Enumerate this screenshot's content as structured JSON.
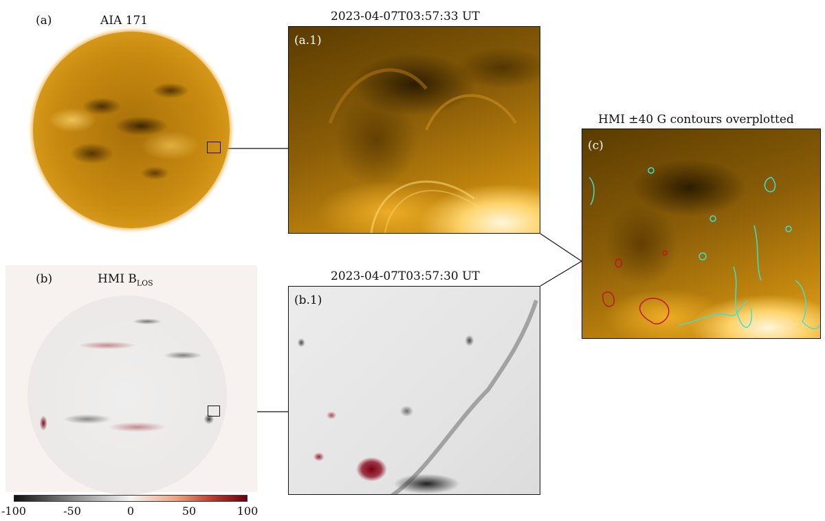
{
  "panel_a": {
    "tag": "(a)",
    "title": "AIA 171"
  },
  "panel_a1": {
    "timestamp": "2023-04-07T03:57:33 UT",
    "tag": "(a.1)"
  },
  "panel_b": {
    "tag": "(b)",
    "title_main": "HMI B",
    "title_sub": "LOS"
  },
  "panel_b1": {
    "timestamp": "2023-04-07T03:57:30 UT",
    "tag": "(b.1)"
  },
  "panel_c": {
    "title": "HMI ±40 G contours overplotted",
    "tag": "(c)"
  },
  "colorbar": {
    "ticks": [
      "-100",
      "-50",
      "0",
      "50",
      "100"
    ]
  },
  "colors": {
    "aia_gold": "#c88a10",
    "positive_red": "#8b0a1a",
    "negative_black": "#111111",
    "contour_cyan": "#40e0d0",
    "contour_red": "#c0141e"
  }
}
